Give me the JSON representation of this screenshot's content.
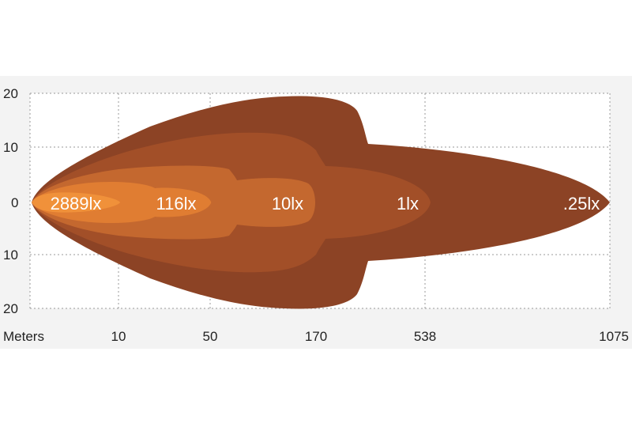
{
  "chart_data": {
    "type": "area",
    "title": "",
    "xlabel": "Meters",
    "ylabel": "",
    "x_ticks": [
      "10",
      "50",
      "170",
      "538",
      "1075"
    ],
    "y_ticks": [
      "20",
      "10",
      "0",
      "10",
      "20"
    ],
    "ylim": [
      -20,
      20
    ],
    "grid": true,
    "zones": [
      {
        "label": ".25lx",
        "reach_m": 1075,
        "color": "#8c4325"
      },
      {
        "label": "1lx",
        "reach_m": 538,
        "color": "#a24f28"
      },
      {
        "label": "10lx",
        "reach_m": 170,
        "color": "#c4682f"
      },
      {
        "label": "116lx",
        "reach_m": 50,
        "color": "#e07d32"
      },
      {
        "label": "2889lx",
        "reach_m": 10,
        "color": "#f0913a"
      }
    ]
  }
}
